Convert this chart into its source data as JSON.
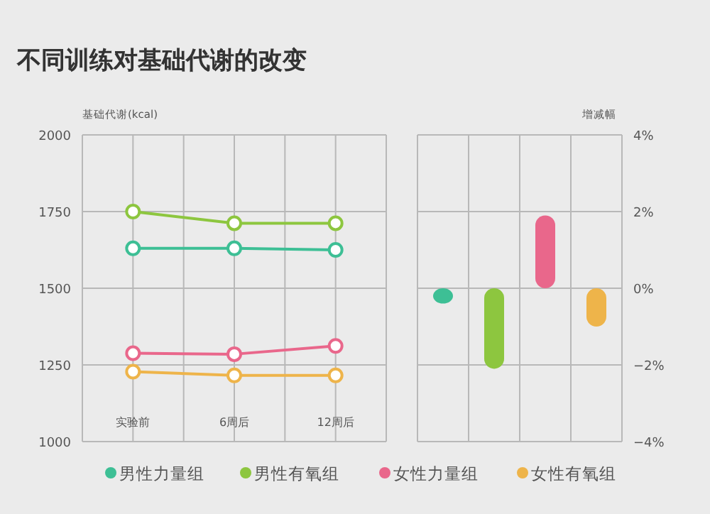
{
  "chart_data": [
    {
      "type": "line",
      "title": "不同训练对基础代谢的改变",
      "ylabel": "基础代谢(kcal)",
      "categories": [
        "实验前",
        "6周后",
        "12周后"
      ],
      "series": [
        {
          "name": "男性力量组",
          "color": "#3dbf95",
          "values": [
            1630,
            1630,
            1625
          ]
        },
        {
          "name": "男性有氧组",
          "color": "#8dc63f",
          "values": [
            1750,
            1712,
            1712
          ]
        },
        {
          "name": "女性力量组",
          "color": "#e9678b",
          "values": [
            1288,
            1285,
            1312
          ]
        },
        {
          "name": "女性有氧组",
          "color": "#eeb44a",
          "values": [
            1228,
            1216,
            1216
          ]
        }
      ],
      "ylim": [
        1000,
        2000
      ],
      "yticks": [
        1000,
        1250,
        1500,
        1750,
        2000
      ],
      "grid": true,
      "legend": "bottom",
      "marker": "circle"
    },
    {
      "type": "bar",
      "ylabel": "增减幅",
      "categories": [
        null,
        null,
        null,
        null
      ],
      "values": [
        -0.4,
        -2.1,
        1.9,
        -1.0
      ],
      "colors": [
        "#3dbf95",
        "#8dc63f",
        "#e9678b",
        "#eeb44a"
      ],
      "ylim": [
        -4,
        4
      ],
      "yticks": [
        {
          "value": -4,
          "label": "−4%"
        },
        {
          "value": -2,
          "label": "−2%"
        },
        {
          "value": 0,
          "label": "0%"
        },
        {
          "value": 2,
          "label": "2%"
        },
        {
          "value": 4,
          "label": "4%"
        }
      ],
      "grid": true
    }
  ]
}
